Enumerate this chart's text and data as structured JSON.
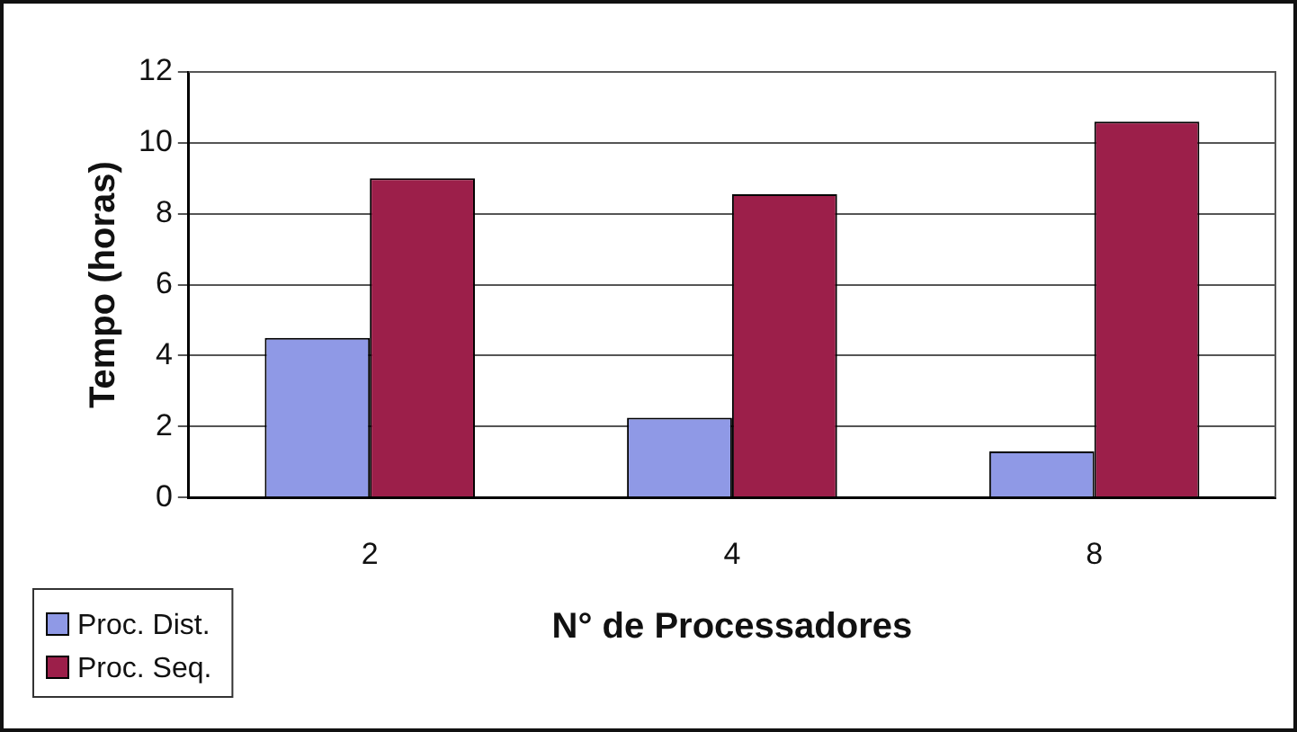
{
  "chart_data": {
    "type": "bar",
    "xlabel": "N° de Processadores",
    "ylabel": "Tempo (horas)",
    "categories": [
      "2",
      "4",
      "8"
    ],
    "series": [
      {
        "name": "Proc. Dist.",
        "color": "#8f99e6",
        "values": [
          4.5,
          2.25,
          1.3
        ]
      },
      {
        "name": "Proc. Seq.",
        "color": "#9c1f4a",
        "values": [
          9.0,
          8.55,
          10.6
        ]
      }
    ],
    "ylim": [
      0,
      12
    ],
    "yticks": [
      0,
      2,
      4,
      6,
      8,
      10,
      12
    ],
    "grid": "y",
    "legend": "bottom left"
  }
}
